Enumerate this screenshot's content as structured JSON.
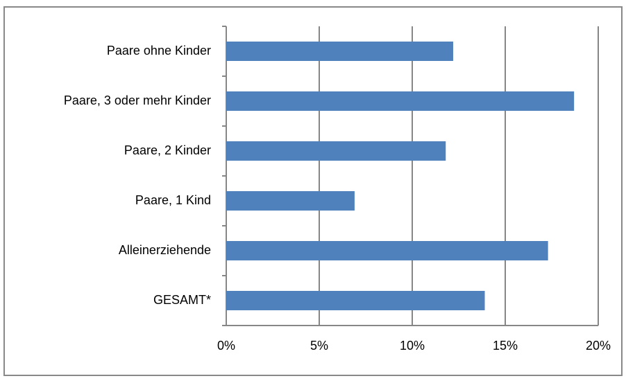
{
  "chart_data": {
    "type": "bar",
    "orientation": "horizontal",
    "categories": [
      "Paare ohne Kinder",
      "Paare, 3 oder mehr Kinder",
      "Paare, 2 Kinder",
      "Paare, 1 Kind",
      "Alleinerziehende",
      "GESAMT*"
    ],
    "values": [
      12.2,
      18.7,
      11.8,
      6.9,
      17.3,
      13.9
    ],
    "color": "#4f81bd",
    "xlim": [
      0,
      20
    ],
    "xticks": [
      {
        "value": 0,
        "label": "0%"
      },
      {
        "value": 5,
        "label": "5%"
      },
      {
        "value": 10,
        "label": "10%"
      },
      {
        "value": 15,
        "label": "15%"
      },
      {
        "value": 20,
        "label": "20%"
      }
    ],
    "grid": true
  }
}
